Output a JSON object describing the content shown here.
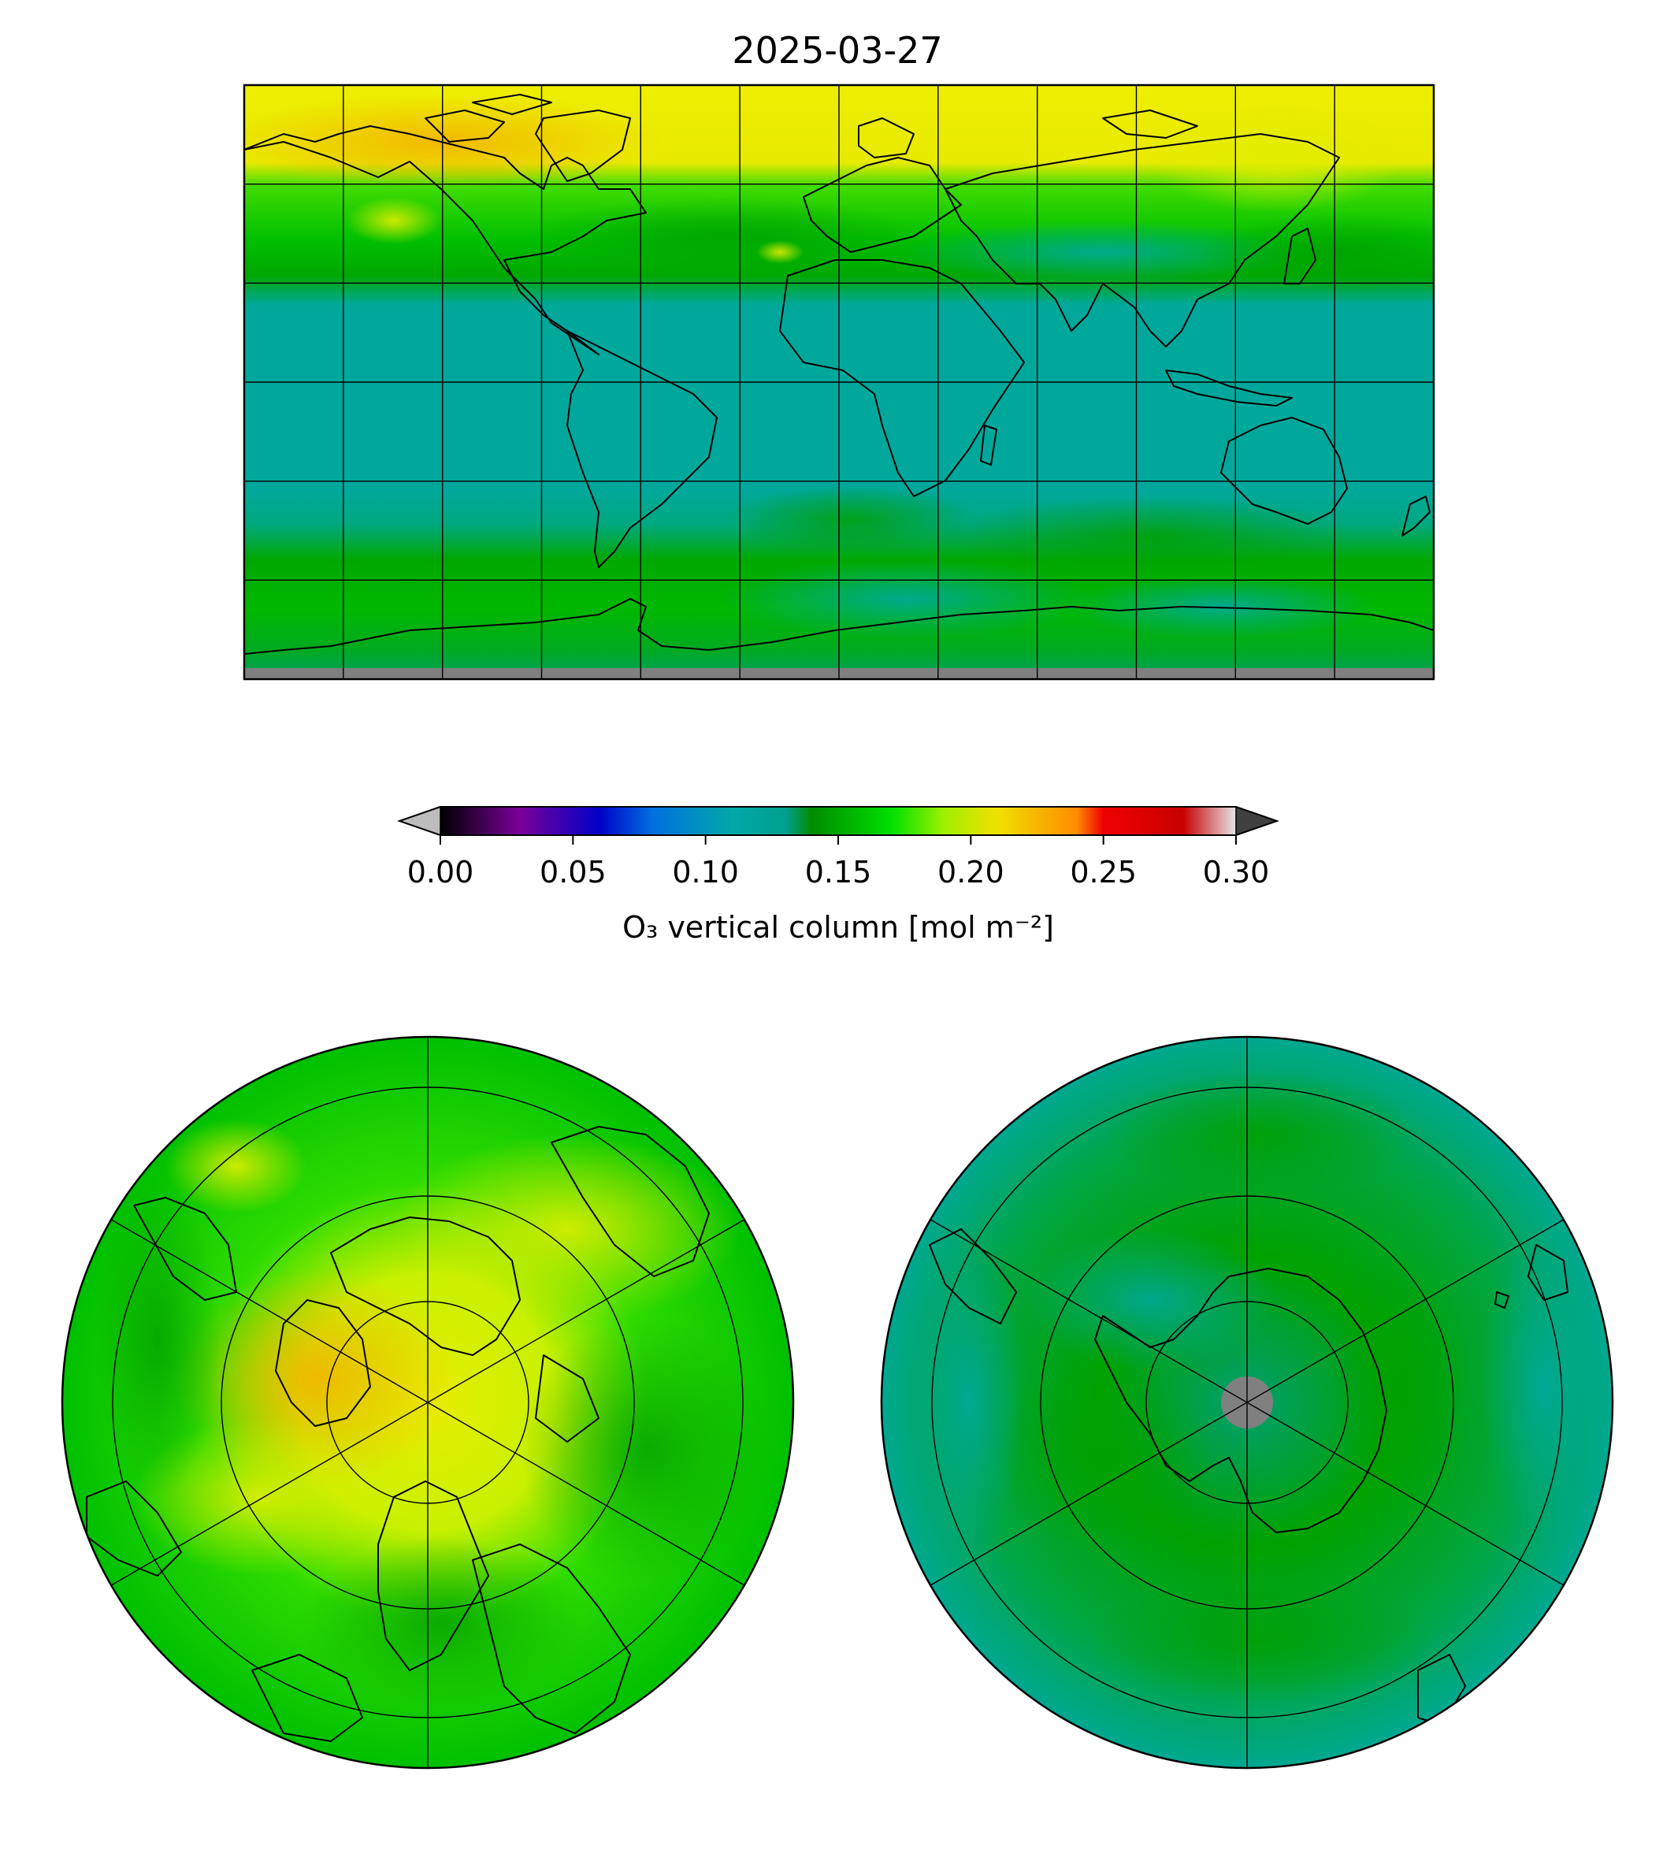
{
  "figure": {
    "title": "2025-03-27"
  },
  "colorbar": {
    "label": "O₃ vertical column [mol m⁻²]",
    "ticks": [
      "0.00",
      "0.05",
      "0.10",
      "0.15",
      "0.20",
      "0.25",
      "0.30"
    ],
    "tick_values": [
      0.0,
      0.05,
      0.1,
      0.15,
      0.2,
      0.25,
      0.3
    ],
    "range": [
      0.0,
      0.3
    ],
    "extend": "both",
    "under_color": "#bdbdbd",
    "over_color": "#404040",
    "colormap_stops": [
      {
        "v": 0.0,
        "c": "#000000"
      },
      {
        "v": 0.03,
        "c": "#7a0099"
      },
      {
        "v": 0.06,
        "c": "#0000c8"
      },
      {
        "v": 0.08,
        "c": "#0070e0"
      },
      {
        "v": 0.11,
        "c": "#00a8a8"
      },
      {
        "v": 0.13,
        "c": "#00a090"
      },
      {
        "v": 0.14,
        "c": "#008c00"
      },
      {
        "v": 0.17,
        "c": "#00e000"
      },
      {
        "v": 0.19,
        "c": "#a0f000"
      },
      {
        "v": 0.21,
        "c": "#f0e000"
      },
      {
        "v": 0.24,
        "c": "#ff8c00"
      },
      {
        "v": 0.25,
        "c": "#f00000"
      },
      {
        "v": 0.28,
        "c": "#c80000"
      },
      {
        "v": 0.3,
        "c": "#e6e6e6"
      }
    ]
  },
  "maps": [
    {
      "name": "global",
      "projection": "equirectangular",
      "missing_color": "#808080"
    },
    {
      "name": "north-polar",
      "projection": "north-polar-stereographic"
    },
    {
      "name": "south-polar",
      "projection": "south-polar-stereographic",
      "missing_color": "#808080"
    }
  ],
  "colors": {
    "teal": "#00a89c",
    "green": "#00b400",
    "bright_green": "#22e000",
    "yellow_green": "#b8ee00",
    "yellow": "#eeee00",
    "orange": "#f0c000"
  }
}
